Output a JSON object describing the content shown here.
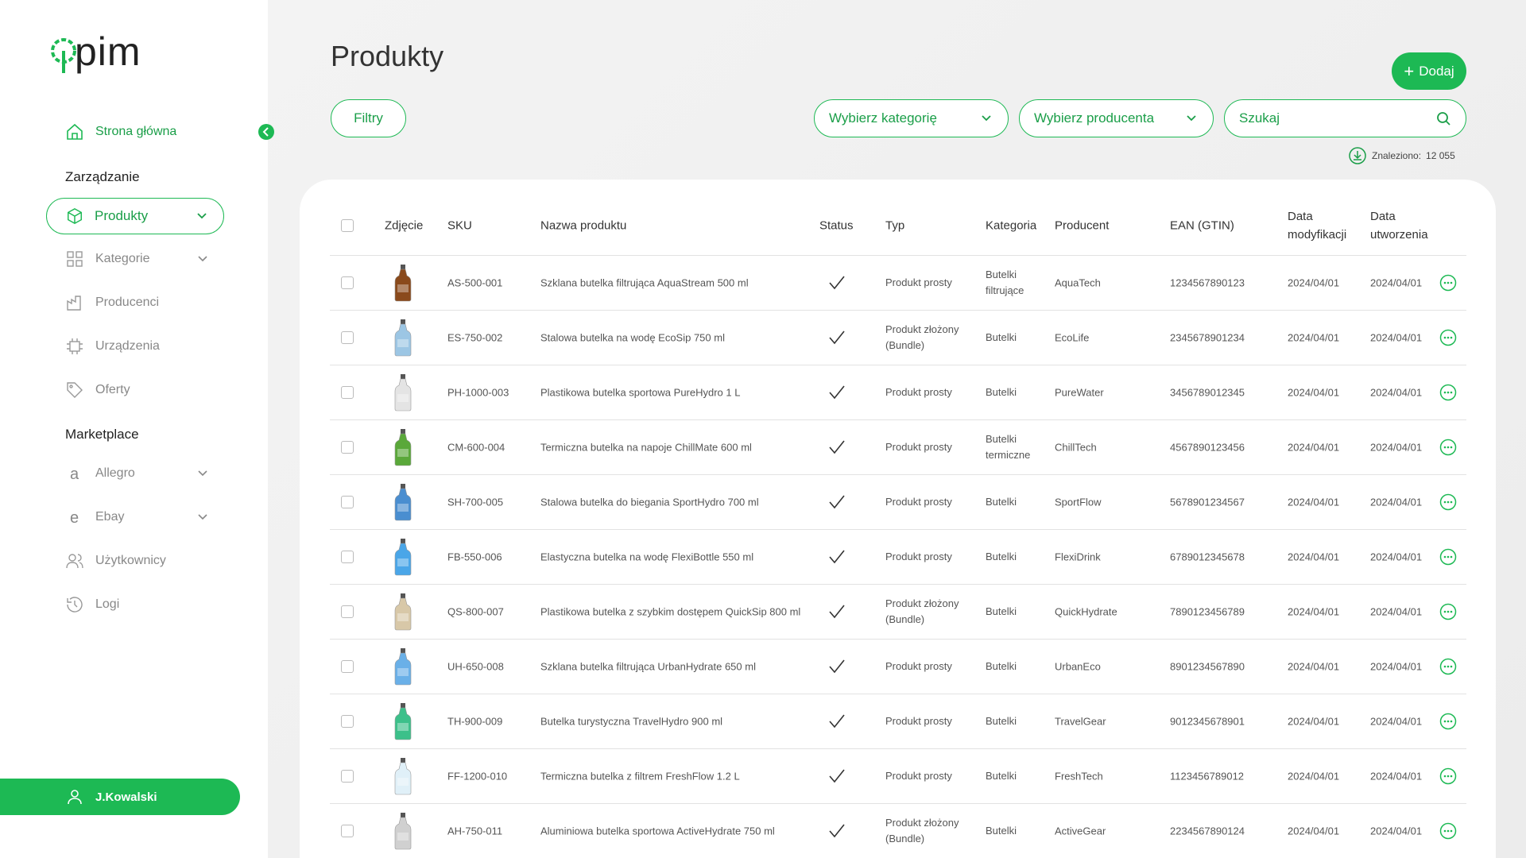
{
  "sidebar": {
    "logo": "pim",
    "home": "Strona główna",
    "section_manage": "Zarządzanie",
    "manage_items": [
      "Produkty",
      "Kategorie",
      "Producenci",
      "Urządzenia",
      "Oferty"
    ],
    "section_market": "Marketplace",
    "market_items": [
      "Allegro",
      "Ebay"
    ],
    "other_items": [
      "Użytkownicy",
      "Logi"
    ],
    "user": "J.Kowalski"
  },
  "header": {
    "title": "Produkty",
    "add": "Dodaj"
  },
  "filters": {
    "filters": "Filtry",
    "category": "Wybierz kategorię",
    "producer": "Wybierz producenta",
    "search": "Szukaj",
    "found_label": "Znaleziono:",
    "found_count": "12 055"
  },
  "table": {
    "columns": [
      "Zdjęcie",
      "SKU",
      "Nazwa produktu",
      "Status",
      "Typ",
      "Kategoria",
      "Producent",
      "EAN (GTIN)",
      "Data modyfikacji",
      "Data utworzenia"
    ],
    "rows": [
      {
        "sku": "AS-500-001",
        "name": "Szklana butelka filtrująca AquaStream 500 ml",
        "type": "Produkt prosty",
        "category": "Butelki filtrujące",
        "producer": "AquaTech",
        "ean": "1234567890123",
        "modified": "2024/04/01",
        "created": "2024/04/01"
      },
      {
        "sku": "ES-750-002",
        "name": "Stalowa butelka na wodę EcoSip 750 ml",
        "type": "Produkt złożony (Bundle)",
        "category": "Butelki",
        "producer": "EcoLife",
        "ean": "2345678901234",
        "modified": "2024/04/01",
        "created": "2024/04/01"
      },
      {
        "sku": "PH-1000-003",
        "name": "Plastikowa butelka sportowa PureHydro 1 L",
        "type": "Produkt prosty",
        "category": "Butelki",
        "producer": "PureWater",
        "ean": "3456789012345",
        "modified": "2024/04/01",
        "created": "2024/04/01"
      },
      {
        "sku": "CM-600-004",
        "name": "Termiczna butelka na napoje ChillMate 600 ml",
        "type": "Produkt prosty",
        "category": "Butelki termiczne",
        "producer": "ChillTech",
        "ean": "4567890123456",
        "modified": "2024/04/01",
        "created": "2024/04/01"
      },
      {
        "sku": "SH-700-005",
        "name": "Stalowa butelka do biegania SportHydro 700 ml",
        "type": "Produkt prosty",
        "category": "Butelki",
        "producer": "SportFlow",
        "ean": "5678901234567",
        "modified": "2024/04/01",
        "created": "2024/04/01"
      },
      {
        "sku": "FB-550-006",
        "name": "Elastyczna butelka na wodę FlexiBottle 550 ml",
        "type": "Produkt prosty",
        "category": "Butelki",
        "producer": "FlexiDrink",
        "ean": "6789012345678",
        "modified": "2024/04/01",
        "created": "2024/04/01"
      },
      {
        "sku": "QS-800-007",
        "name": "Plastikowa butelka z szybkim dostępem QuickSip 800 ml",
        "type": "Produkt złożony (Bundle)",
        "category": "Butelki",
        "producer": "QuickHydrate",
        "ean": "7890123456789",
        "modified": "2024/04/01",
        "created": "2024/04/01"
      },
      {
        "sku": "UH-650-008",
        "name": "Szklana butelka filtrująca UrbanHydrate 650 ml",
        "type": "Produkt prosty",
        "category": "Butelki",
        "producer": "UrbanEco",
        "ean": "8901234567890",
        "modified": "2024/04/01",
        "created": "2024/04/01"
      },
      {
        "sku": "TH-900-009",
        "name": "Butelka turystyczna TravelHydro 900 ml",
        "type": "Produkt prosty",
        "category": "Butelki",
        "producer": "TravelGear",
        "ean": "9012345678901",
        "modified": "2024/04/01",
        "created": "2024/04/01"
      },
      {
        "sku": "FF-1200-010",
        "name": "Termiczna butelka z filtrem FreshFlow 1.2 L",
        "type": "Produkt prosty",
        "category": "Butelki",
        "producer": "FreshTech",
        "ean": "1123456789012",
        "modified": "2024/04/01",
        "created": "2024/04/01"
      },
      {
        "sku": "AH-750-011",
        "name": "Aluminiowa butelka sportowa ActiveHydrate 750 ml",
        "type": "Produkt złożony (Bundle)",
        "category": "Butelki",
        "producer": "ActiveGear",
        "ean": "2234567890124",
        "modified": "2024/04/01",
        "created": "2024/04/01"
      }
    ]
  }
}
